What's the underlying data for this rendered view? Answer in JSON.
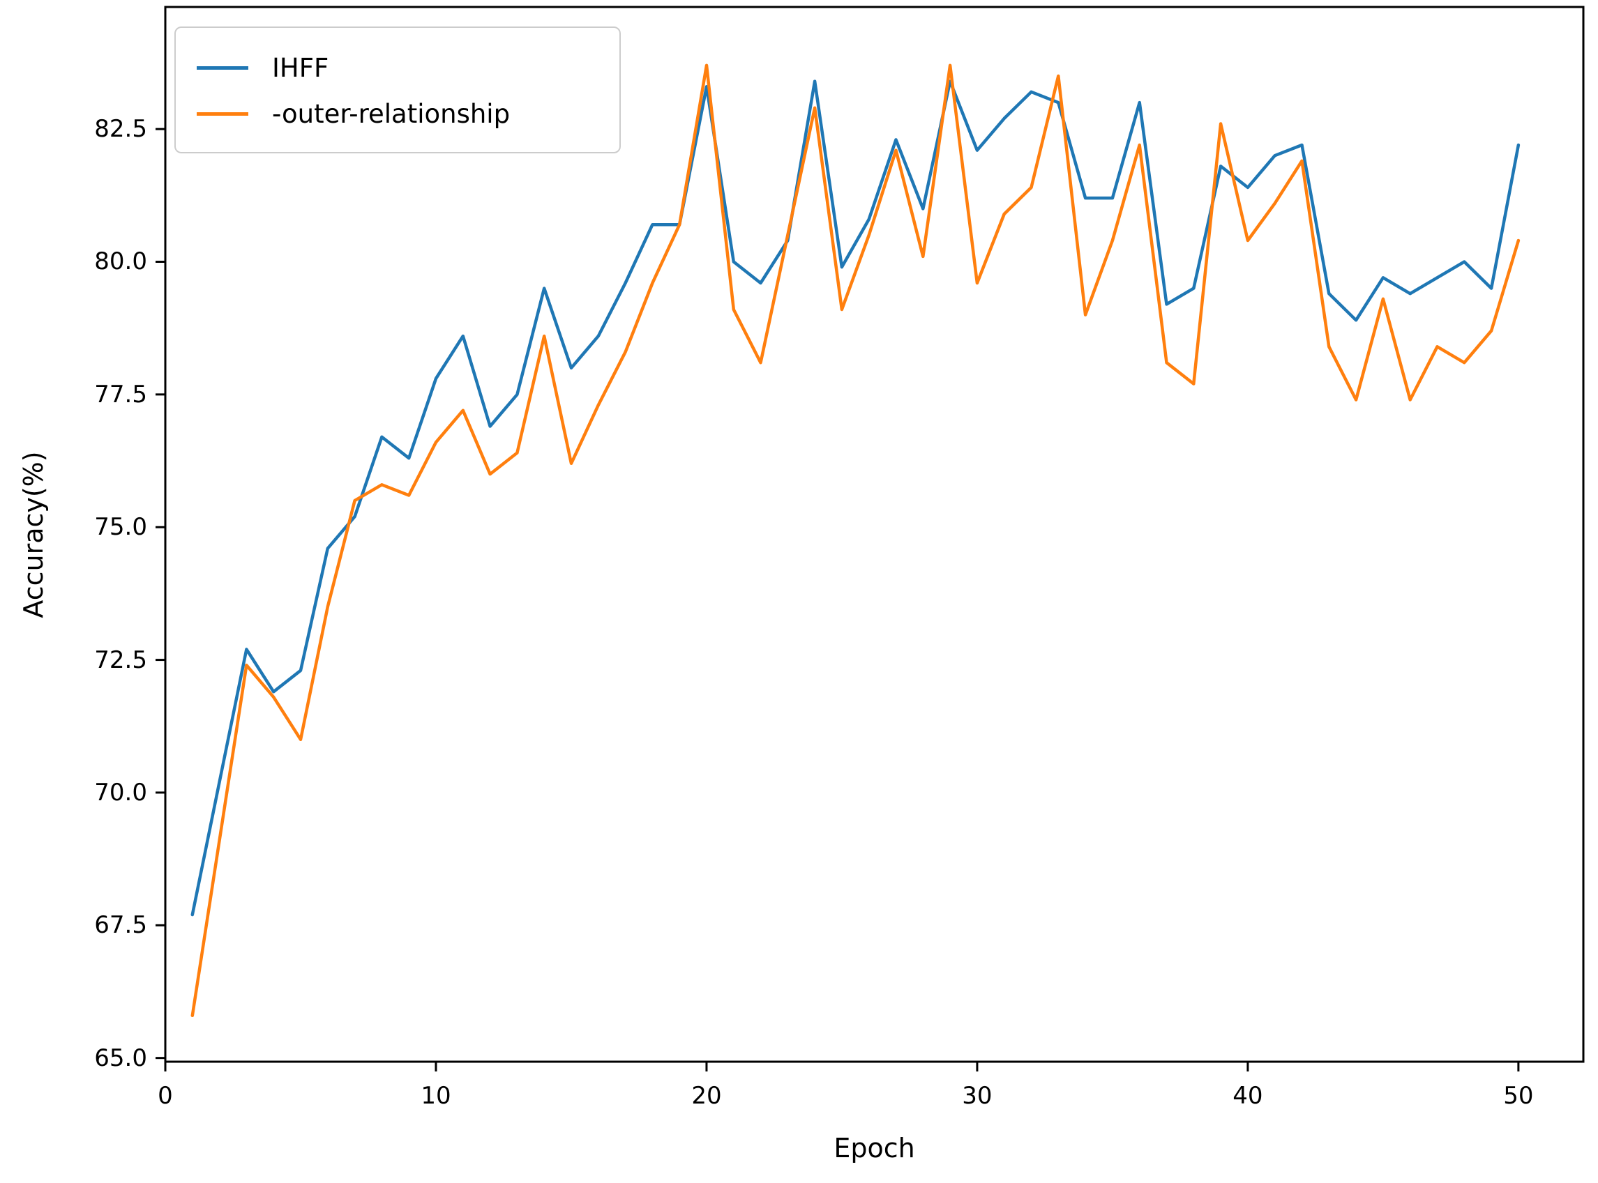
{
  "chart_data": {
    "type": "line",
    "title": "",
    "xlabel": "Epoch",
    "ylabel": "Accuracy(%)",
    "x": [
      1,
      2,
      3,
      4,
      5,
      6,
      7,
      8,
      9,
      10,
      11,
      12,
      13,
      14,
      15,
      16,
      17,
      18,
      19,
      20,
      21,
      22,
      23,
      24,
      25,
      26,
      27,
      28,
      29,
      30,
      31,
      32,
      33,
      34,
      35,
      36,
      37,
      38,
      39,
      40,
      41,
      42,
      43,
      44,
      45,
      46,
      47,
      48,
      49,
      50
    ],
    "series": [
      {
        "name": "IHFF",
        "color": "#1f77b4",
        "values": [
          67.7,
          70.2,
          72.7,
          71.9,
          72.3,
          74.6,
          75.2,
          76.7,
          76.3,
          77.8,
          78.6,
          76.9,
          77.5,
          79.5,
          78.0,
          78.6,
          79.6,
          80.7,
          80.7,
          83.3,
          80.0,
          79.6,
          80.4,
          83.4,
          79.9,
          80.8,
          82.3,
          81.0,
          83.4,
          82.1,
          82.7,
          83.2,
          83.0,
          81.2,
          81.2,
          83.0,
          79.2,
          79.5,
          81.8,
          81.4,
          82.0,
          82.2,
          79.4,
          78.9,
          79.7,
          79.4,
          79.7,
          80.0,
          79.5,
          82.2
        ]
      },
      {
        "name": "-outer-relationship",
        "color": "#ff7f0e",
        "values": [
          65.8,
          69.1,
          72.4,
          71.8,
          71.0,
          73.5,
          75.5,
          75.8,
          75.6,
          76.6,
          77.2,
          76.0,
          76.4,
          78.6,
          76.2,
          77.3,
          78.3,
          79.6,
          80.7,
          83.7,
          79.1,
          78.1,
          80.5,
          82.9,
          79.1,
          80.5,
          82.1,
          80.1,
          83.7,
          79.6,
          80.9,
          81.4,
          83.5,
          79.0,
          80.4,
          82.2,
          78.1,
          77.7,
          82.6,
          80.4,
          81.1,
          81.9,
          78.4,
          77.4,
          79.3,
          77.4,
          78.4,
          78.1,
          78.7,
          80.4
        ]
      }
    ],
    "xlim": [
      0,
      52.4
    ],
    "ylim": [
      64.93,
      84.8
    ],
    "xticks": [
      "0",
      "10",
      "20",
      "30",
      "40",
      "50"
    ],
    "xtick_values": [
      0,
      10,
      20,
      30,
      40,
      50
    ],
    "yticks": [
      "65.0",
      "67.5",
      "70.0",
      "72.5",
      "75.0",
      "77.5",
      "80.0",
      "82.5"
    ],
    "ytick_values": [
      65.0,
      67.5,
      70.0,
      72.5,
      75.0,
      77.5,
      80.0,
      82.5
    ],
    "grid": false,
    "legend_position": "upper left",
    "frame_color": "#000000",
    "background_color": "#ffffff"
  }
}
